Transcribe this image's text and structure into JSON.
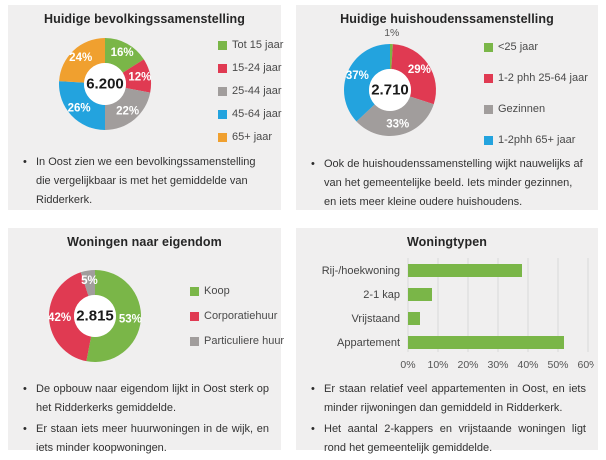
{
  "page": {
    "background": "#ffffff",
    "panel_background": "#f0efef"
  },
  "palette": {
    "green": "#7ab648",
    "red": "#e03a52",
    "gray": "#a19d9c",
    "blue": "#23a3de",
    "orange": "#f0a02f",
    "grid": "#d9d9d9"
  },
  "panels": [
    {
      "title": "Huidige bevolkingssamenstelling",
      "bullets": [
        "In Oost zien we een bevolkingssamenstelling die vergelijkbaar is met het gemiddelde van Ridderkerk."
      ]
    },
    {
      "title": "Huidige huishoudenssamenstelling",
      "bullets": [
        "Ook de huishoudenssamenstelling wijkt nauwelijks af van het gemeentelijke beeld. Iets minder gezinnen, en iets meer kleine oudere huishoudens."
      ]
    },
    {
      "title": "Woningen naar eigendom",
      "bullets": [
        "De opbouw naar eigendom lijkt in Oost sterk op het Ridderkerks gemiddelde.",
        "Er staan iets meer huurwoningen in de wijk, en iets minder koopwoningen."
      ]
    },
    {
      "title": "Woningtypen",
      "bullets": [
        "Er staan relatief veel appartementen in Oost, en iets minder rijwoningen dan gemiddeld in Ridderkerk.",
        "Het aantal 2-kappers en vrijstaande woningen ligt rond het gemeentelijk gemiddelde."
      ]
    }
  ],
  "chart_data": [
    {
      "type": "pie",
      "subtype": "donut",
      "title": "Huidige bevolkingssamenstelling",
      "center_label": "6.200",
      "labels": [
        "Tot 15 jaar",
        "15-24 jaar",
        "25-44 jaar",
        "45-64 jaar",
        "65+ jaar"
      ],
      "values": [
        16,
        12,
        22,
        26,
        24
      ],
      "value_labels": [
        "16%",
        "12%",
        "22%",
        "26%",
        "24%"
      ],
      "colors": [
        "#7ab648",
        "#e03a52",
        "#a19d9c",
        "#23a3de",
        "#f0a02f"
      ],
      "legend_position": "right"
    },
    {
      "type": "pie",
      "subtype": "donut",
      "title": "Huidige huishoudenssamenstelling",
      "center_label": "2.710",
      "labels": [
        "<25 jaar",
        "1-2 phh 25-64 jaar",
        "Gezinnen",
        "1-2phh 65+ jaar"
      ],
      "values": [
        1,
        29,
        33,
        37
      ],
      "value_labels": [
        "1%",
        "29%",
        "33%",
        "37%"
      ],
      "colors": [
        "#7ab648",
        "#e03a52",
        "#a19d9c",
        "#23a3de"
      ],
      "legend_position": "right"
    },
    {
      "type": "pie",
      "subtype": "donut",
      "title": "Woningen naar eigendom",
      "center_label": "2.815",
      "labels": [
        "Koop",
        "Corporatiehuur",
        "Particuliere huur"
      ],
      "values": [
        53,
        42,
        5
      ],
      "value_labels": [
        "53%",
        "42%",
        "5%"
      ],
      "colors": [
        "#7ab648",
        "#e03a52",
        "#a19d9c"
      ],
      "legend_position": "right"
    },
    {
      "type": "bar",
      "orientation": "horizontal",
      "title": "Woningtypen",
      "categories": [
        "Rij-/hoekwoning",
        "2-1 kap",
        "Vrijstaand",
        "Appartement"
      ],
      "values": [
        38,
        8,
        4,
        52
      ],
      "unit": "%",
      "xlim": [
        0,
        60
      ],
      "xticks": [
        0,
        10,
        20,
        30,
        40,
        50,
        60
      ],
      "xtick_labels": [
        "0%",
        "10%",
        "20%",
        "30%",
        "40%",
        "50%",
        "60%"
      ],
      "bar_color": "#7ab648",
      "grid": true,
      "legend_position": "none"
    }
  ]
}
